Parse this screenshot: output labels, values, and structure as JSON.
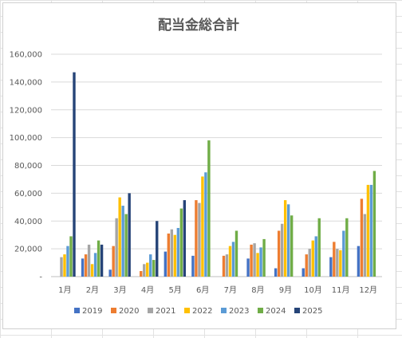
{
  "chart_data": {
    "type": "bar",
    "title": "配当金総合計",
    "xlabel": "",
    "ylabel": "",
    "ylim": [
      0,
      160000
    ],
    "yticks": [
      0,
      20000,
      40000,
      60000,
      80000,
      100000,
      120000,
      140000,
      160000
    ],
    "ytick_labels": [
      "-",
      "20,000",
      "40,000",
      "60,000",
      "80,000",
      "100,000",
      "120,000",
      "140,000",
      "160,000"
    ],
    "grid": true,
    "legend_position": "bottom",
    "categories": [
      "1月",
      "2月",
      "3月",
      "4月",
      "5月",
      "6月",
      "7月",
      "8月",
      "9月",
      "10月",
      "11月",
      "12月"
    ],
    "series": [
      {
        "name": "2019",
        "color": "#4472C4",
        "values": [
          0,
          13000,
          5000,
          0,
          18000,
          15000,
          0,
          13000,
          6000,
          6000,
          14000,
          22000
        ]
      },
      {
        "name": "2020",
        "color": "#ED7D31",
        "values": [
          0,
          16000,
          22000,
          4000,
          31000,
          55000,
          15000,
          23000,
          33000,
          16000,
          25000,
          56000
        ]
      },
      {
        "name": "2021",
        "color": "#A5A5A5",
        "values": [
          14000,
          23000,
          42000,
          9000,
          34000,
          53000,
          16000,
          24000,
          38000,
          20000,
          20000,
          45000
        ]
      },
      {
        "name": "2022",
        "color": "#FFC000",
        "values": [
          16000,
          9000,
          57000,
          10000,
          30000,
          72000,
          22000,
          17000,
          55000,
          26000,
          19000,
          66000
        ]
      },
      {
        "name": "2023",
        "color": "#5B9BD5",
        "values": [
          22000,
          17000,
          51000,
          16000,
          35000,
          75000,
          25000,
          21000,
          52000,
          29000,
          33000,
          66000
        ]
      },
      {
        "name": "2024",
        "color": "#70AD47",
        "values": [
          29000,
          26000,
          45000,
          12000,
          49000,
          98000,
          33000,
          27000,
          44000,
          42000,
          42000,
          76000
        ]
      },
      {
        "name": "2025",
        "color": "#264478",
        "values": [
          147000,
          23000,
          60000,
          40000,
          55000,
          0,
          0,
          0,
          0,
          0,
          0,
          0
        ]
      }
    ]
  }
}
